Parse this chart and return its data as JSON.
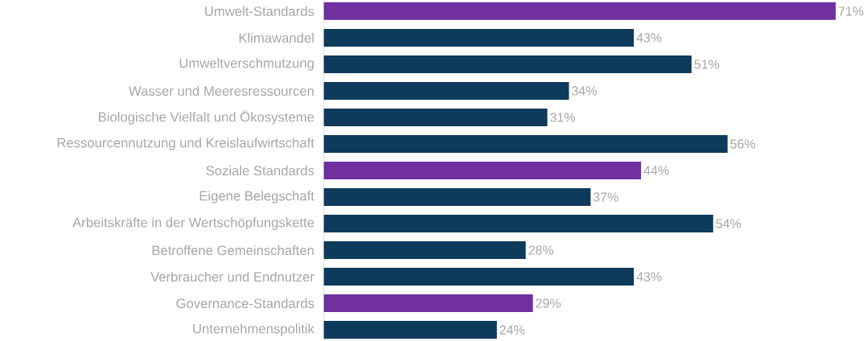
{
  "chart_data": {
    "type": "bar",
    "orientation": "horizontal",
    "categories": [
      "Umwelt-Standards",
      "Klimawandel",
      "Umweltverschmutzung",
      "Wasser und Meeresressourcen",
      "Biologische Vielfalt und Ökosysteme",
      "Ressourcennutzung und Kreislaufwirtschaft",
      "Soziale Standards",
      "Eigene Belegschaft",
      "Arbeitskräfte in der Wertschöpfungskette",
      "Betroffene Gemeinschaften",
      "Verbraucher und Endnutzer",
      "Governance-Standards",
      "Unternehmenspolitik"
    ],
    "values": [
      71,
      43,
      51,
      34,
      31,
      56,
      44,
      37,
      54,
      28,
      43,
      29,
      24
    ],
    "value_labels": [
      "71%",
      "43%",
      "51%",
      "34%",
      "31%",
      "56%",
      "44%",
      "37%",
      "54%",
      "28%",
      "43%",
      "29%",
      "24%"
    ],
    "colors": [
      "#7030a0",
      "#0e3a5c",
      "#0e3a5c",
      "#0e3a5c",
      "#0e3a5c",
      "#0e3a5c",
      "#7030a0",
      "#0e3a5c",
      "#0e3a5c",
      "#0e3a5c",
      "#0e3a5c",
      "#7030a0",
      "#0e3a5c"
    ]
  }
}
